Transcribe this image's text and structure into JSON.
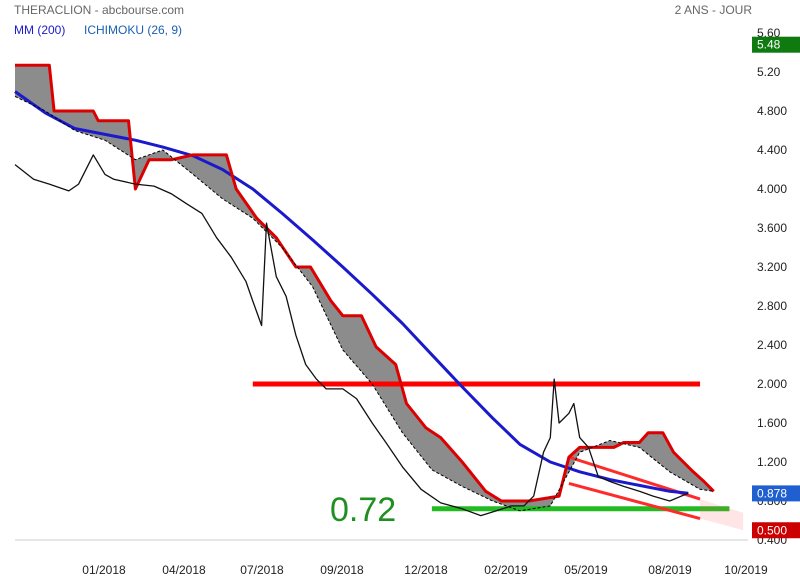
{
  "header": {
    "source": "THERACLION - abcbourse.com",
    "period": "2 ANS - JOUR",
    "legend": [
      {
        "label": "MM (200)",
        "color": "#1a1acc"
      },
      {
        "label": "ICHIMOKU (26, 9)",
        "color": "#1a5fb4"
      }
    ]
  },
  "chart_data": {
    "type": "line",
    "y_ticks": [
      "5.60",
      "5.20",
      "4.800",
      "4.400",
      "4.000",
      "3.600",
      "3.200",
      "2.800",
      "2.400",
      "2.000",
      "1.600",
      "1.200",
      "0.800",
      "0.400"
    ],
    "x_ticks": [
      "01/2018",
      "04/2018",
      "07/2018",
      "09/2018",
      "12/2018",
      "02/2019",
      "05/2019",
      "08/2019",
      "10/2019"
    ],
    "ylim": [
      0.4,
      5.6
    ],
    "xlim": [
      "2017-10-01",
      "2019-10-20"
    ],
    "price_badges": [
      {
        "label": "5.48",
        "value": 5.48,
        "color": "#0f7a0f"
      },
      {
        "label": "0.878",
        "value": 0.878,
        "color": "#1f5fd0"
      },
      {
        "label": "0.500",
        "value": 0.5,
        "color": "#cc0000"
      }
    ],
    "annotations": [
      {
        "text": "0.72",
        "value": 0.72,
        "color": "#1f8f1f"
      }
    ],
    "horizontal_levels": [
      {
        "value": 2.0,
        "from": "2018-06-01",
        "to": "2019-09-01",
        "color": "#ff0000"
      },
      {
        "value": 0.72,
        "from": "2018-12-01",
        "to": "2019-10-01",
        "color": "#22bb22"
      }
    ],
    "channel": {
      "color": "#ff2a2a",
      "upper": [
        [
          "2019-04-20",
          1.25
        ],
        [
          "2019-09-01",
          0.82
        ]
      ],
      "lower": [
        [
          "2019-04-20",
          0.98
        ],
        [
          "2019-09-01",
          0.62
        ]
      ],
      "extension_to": "2019-10-15"
    },
    "series": [
      {
        "name": "MM (200)",
        "color": "#1a1acc",
        "points": [
          [
            "2017-10-01",
            5.0
          ],
          [
            "2017-11-01",
            4.78
          ],
          [
            "2017-12-01",
            4.62
          ],
          [
            "2018-01-01",
            4.56
          ],
          [
            "2018-02-01",
            4.5
          ],
          [
            "2018-03-01",
            4.43
          ],
          [
            "2018-04-01",
            4.34
          ],
          [
            "2018-05-01",
            4.2
          ],
          [
            "2018-06-01",
            4.0
          ],
          [
            "2018-07-01",
            3.75
          ],
          [
            "2018-08-01",
            3.48
          ],
          [
            "2018-09-01",
            3.2
          ],
          [
            "2018-10-01",
            2.92
          ],
          [
            "2018-11-01",
            2.62
          ],
          [
            "2018-12-01",
            2.3
          ],
          [
            "2019-01-01",
            1.97
          ],
          [
            "2019-02-01",
            1.65
          ],
          [
            "2019-03-01",
            1.38
          ],
          [
            "2019-04-01",
            1.2
          ],
          [
            "2019-05-01",
            1.1
          ],
          [
            "2019-06-01",
            1.02
          ],
          [
            "2019-07-01",
            0.96
          ],
          [
            "2019-08-01",
            0.9
          ],
          [
            "2019-08-20",
            0.88
          ]
        ]
      },
      {
        "name": "Kijun (red)",
        "color": "#dd0000",
        "points": [
          [
            "2017-10-01",
            5.27
          ],
          [
            "2017-11-05",
            5.27
          ],
          [
            "2017-11-10",
            4.8
          ],
          [
            "2017-12-20",
            4.8
          ],
          [
            "2017-12-25",
            4.7
          ],
          [
            "2018-01-25",
            4.7
          ],
          [
            "2018-02-01",
            4.0
          ],
          [
            "2018-02-15",
            4.3
          ],
          [
            "2018-03-10",
            4.3
          ],
          [
            "2018-04-01",
            4.35
          ],
          [
            "2018-05-05",
            4.35
          ],
          [
            "2018-05-15",
            4.0
          ],
          [
            "2018-06-05",
            3.7
          ],
          [
            "2018-06-25",
            3.5
          ],
          [
            "2018-07-15",
            3.2
          ],
          [
            "2018-07-30",
            3.2
          ],
          [
            "2018-08-20",
            2.85
          ],
          [
            "2018-09-01",
            2.7
          ],
          [
            "2018-09-20",
            2.7
          ],
          [
            "2018-10-05",
            2.38
          ],
          [
            "2018-10-25",
            2.2
          ],
          [
            "2018-11-05",
            1.8
          ],
          [
            "2018-11-25",
            1.55
          ],
          [
            "2018-12-10",
            1.45
          ],
          [
            "2019-01-01",
            1.2
          ],
          [
            "2019-01-25",
            0.9
          ],
          [
            "2019-02-10",
            0.8
          ],
          [
            "2019-03-10",
            0.8
          ],
          [
            "2019-04-10",
            0.85
          ],
          [
            "2019-04-20",
            1.25
          ],
          [
            "2019-05-01",
            1.35
          ],
          [
            "2019-06-05",
            1.35
          ],
          [
            "2019-06-15",
            1.4
          ],
          [
            "2019-07-01",
            1.4
          ],
          [
            "2019-07-10",
            1.5
          ],
          [
            "2019-07-25",
            1.5
          ],
          [
            "2019-08-05",
            1.3
          ],
          [
            "2019-08-25",
            1.1
          ],
          [
            "2019-09-05",
            1.0
          ],
          [
            "2019-09-15",
            0.9
          ]
        ]
      },
      {
        "name": "Cloud (dashed)",
        "color": "#000000",
        "points": [
          [
            "2017-10-01",
            4.95
          ],
          [
            "2017-11-01",
            4.8
          ],
          [
            "2017-12-01",
            4.6
          ],
          [
            "2018-01-01",
            4.5
          ],
          [
            "2018-02-01",
            4.3
          ],
          [
            "2018-03-01",
            4.4
          ],
          [
            "2018-04-01",
            4.15
          ],
          [
            "2018-05-01",
            3.9
          ],
          [
            "2018-06-01",
            3.7
          ],
          [
            "2018-07-01",
            3.4
          ],
          [
            "2018-08-01",
            3.0
          ],
          [
            "2018-09-01",
            2.35
          ],
          [
            "2018-10-01",
            2.0
          ],
          [
            "2018-11-01",
            1.5
          ],
          [
            "2018-12-01",
            1.12
          ],
          [
            "2019-01-01",
            0.95
          ],
          [
            "2019-02-01",
            0.8
          ],
          [
            "2019-03-01",
            0.7
          ],
          [
            "2019-04-01",
            0.75
          ],
          [
            "2019-05-01",
            1.3
          ],
          [
            "2019-06-01",
            1.42
          ],
          [
            "2019-07-01",
            1.35
          ],
          [
            "2019-08-01",
            1.1
          ],
          [
            "2019-09-01",
            0.92
          ],
          [
            "2019-09-15",
            0.9
          ]
        ]
      },
      {
        "name": "Close (black)",
        "color": "#111111",
        "points": [
          [
            "2017-10-01",
            4.25
          ],
          [
            "2017-10-20",
            4.1
          ],
          [
            "2017-11-05",
            4.05
          ],
          [
            "2017-11-25",
            3.98
          ],
          [
            "2017-12-05",
            4.05
          ],
          [
            "2017-12-20",
            4.35
          ],
          [
            "2018-01-01",
            4.15
          ],
          [
            "2018-01-10",
            4.1
          ],
          [
            "2018-02-01",
            4.05
          ],
          [
            "2018-02-20",
            4.03
          ],
          [
            "2018-03-10",
            3.95
          ],
          [
            "2018-03-25",
            3.85
          ],
          [
            "2018-04-10",
            3.75
          ],
          [
            "2018-04-25",
            3.5
          ],
          [
            "2018-05-10",
            3.3
          ],
          [
            "2018-05-25",
            3.05
          ],
          [
            "2018-06-01",
            2.85
          ],
          [
            "2018-06-10",
            2.6
          ],
          [
            "2018-06-15",
            3.65
          ],
          [
            "2018-06-25",
            3.1
          ],
          [
            "2018-07-05",
            2.9
          ],
          [
            "2018-07-15",
            2.5
          ],
          [
            "2018-07-25",
            2.2
          ],
          [
            "2018-08-05",
            2.05
          ],
          [
            "2018-08-15",
            1.95
          ],
          [
            "2018-09-01",
            1.95
          ],
          [
            "2018-09-15",
            1.85
          ],
          [
            "2018-10-01",
            1.6
          ],
          [
            "2018-10-15",
            1.4
          ],
          [
            "2018-11-01",
            1.15
          ],
          [
            "2018-11-20",
            0.92
          ],
          [
            "2018-12-10",
            0.78
          ],
          [
            "2019-01-01",
            0.72
          ],
          [
            "2019-01-20",
            0.65
          ],
          [
            "2019-02-05",
            0.7
          ],
          [
            "2019-02-20",
            0.75
          ],
          [
            "2019-03-05",
            0.75
          ],
          [
            "2019-03-15",
            0.85
          ],
          [
            "2019-03-25",
            1.3
          ],
          [
            "2019-04-01",
            1.45
          ],
          [
            "2019-04-05",
            2.05
          ],
          [
            "2019-04-10",
            1.6
          ],
          [
            "2019-04-20",
            1.7
          ],
          [
            "2019-04-25",
            1.8
          ],
          [
            "2019-05-01",
            1.45
          ],
          [
            "2019-05-10",
            1.35
          ],
          [
            "2019-05-20",
            1.05
          ],
          [
            "2019-06-01",
            1.0
          ],
          [
            "2019-06-15",
            0.95
          ],
          [
            "2019-07-01",
            0.9
          ],
          [
            "2019-07-15",
            0.85
          ],
          [
            "2019-08-01",
            0.8
          ],
          [
            "2019-08-20",
            0.88
          ]
        ]
      }
    ]
  }
}
